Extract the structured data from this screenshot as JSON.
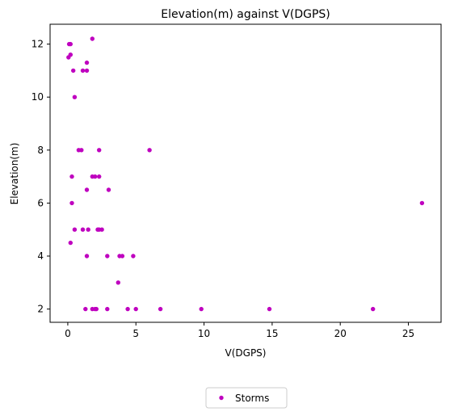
{
  "chart_data": {
    "type": "scatter",
    "title": "Elevation(m) against V(DGPS)",
    "xlabel": "V(DGPS)",
    "ylabel": "Elevation(m)",
    "xlim": [
      -1.3,
      27.4
    ],
    "ylim": [
      1.5,
      12.75
    ],
    "xticks": [
      0,
      5,
      10,
      15,
      20,
      25
    ],
    "yticks": [
      2,
      4,
      6,
      8,
      10,
      12
    ],
    "grid": false,
    "legend_position": "bottom-center",
    "series": [
      {
        "name": "Storms",
        "color": "#bf00bf",
        "marker": "circle",
        "points": [
          [
            0.1,
            12
          ],
          [
            0.2,
            12
          ],
          [
            0.05,
            11.5
          ],
          [
            0.2,
            11.6
          ],
          [
            1.8,
            12.2
          ],
          [
            0.4,
            11
          ],
          [
            1.1,
            11
          ],
          [
            1.4,
            11
          ],
          [
            1.4,
            11.3
          ],
          [
            0.5,
            10
          ],
          [
            0.8,
            8
          ],
          [
            1.0,
            8
          ],
          [
            2.3,
            8
          ],
          [
            6.0,
            8
          ],
          [
            0.3,
            7
          ],
          [
            1.8,
            7
          ],
          [
            2.0,
            7
          ],
          [
            2.3,
            7
          ],
          [
            1.4,
            6.5
          ],
          [
            3.0,
            6.5
          ],
          [
            0.3,
            6
          ],
          [
            26.0,
            6
          ],
          [
            0.5,
            5
          ],
          [
            1.1,
            5
          ],
          [
            1.5,
            5
          ],
          [
            2.2,
            5
          ],
          [
            2.3,
            5
          ],
          [
            2.5,
            5
          ],
          [
            0.2,
            4.5
          ],
          [
            1.4,
            4
          ],
          [
            2.9,
            4
          ],
          [
            3.8,
            4
          ],
          [
            4.0,
            4
          ],
          [
            4.8,
            4
          ],
          [
            3.7,
            3
          ],
          [
            1.3,
            2
          ],
          [
            1.8,
            2
          ],
          [
            2.0,
            2
          ],
          [
            2.1,
            2
          ],
          [
            2.9,
            2
          ],
          [
            4.4,
            2
          ],
          [
            5.0,
            2
          ],
          [
            6.8,
            2
          ],
          [
            9.8,
            2
          ],
          [
            14.8,
            2
          ],
          [
            22.4,
            2
          ]
        ]
      }
    ]
  }
}
